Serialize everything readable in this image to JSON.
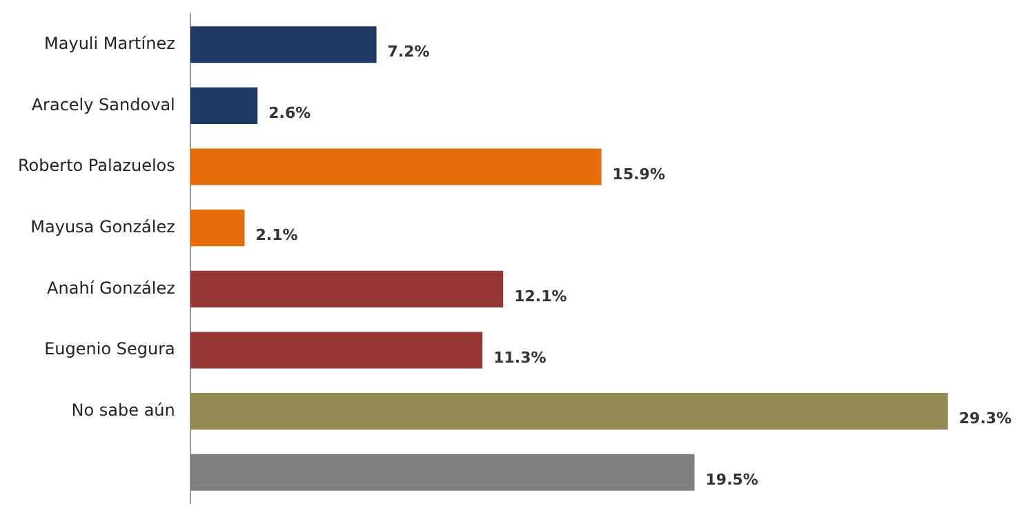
{
  "chart_data": {
    "type": "bar",
    "orientation": "horizontal",
    "categories": [
      "Mayuli Martínez",
      "Aracely Sandoval",
      "Roberto Palazuelos",
      "Mayusa González",
      "Anahí González",
      "Eugenio Segura",
      "No sabe aún",
      null
    ],
    "values": [
      7.2,
      2.6,
      15.9,
      2.1,
      12.1,
      11.3,
      29.3,
      19.5
    ],
    "colors": [
      "#1f3864",
      "#1f3864",
      "#e46c0a",
      "#e46c0a",
      "#953735",
      "#953735",
      "#948a54",
      "#7f7f7f"
    ],
    "value_labels": [
      "7.2%",
      "2.6%",
      "15.9%",
      "2.1%",
      "12.1%",
      "11.3%",
      "29.3%",
      "19.5%"
    ],
    "grid": false,
    "legend": false
  }
}
